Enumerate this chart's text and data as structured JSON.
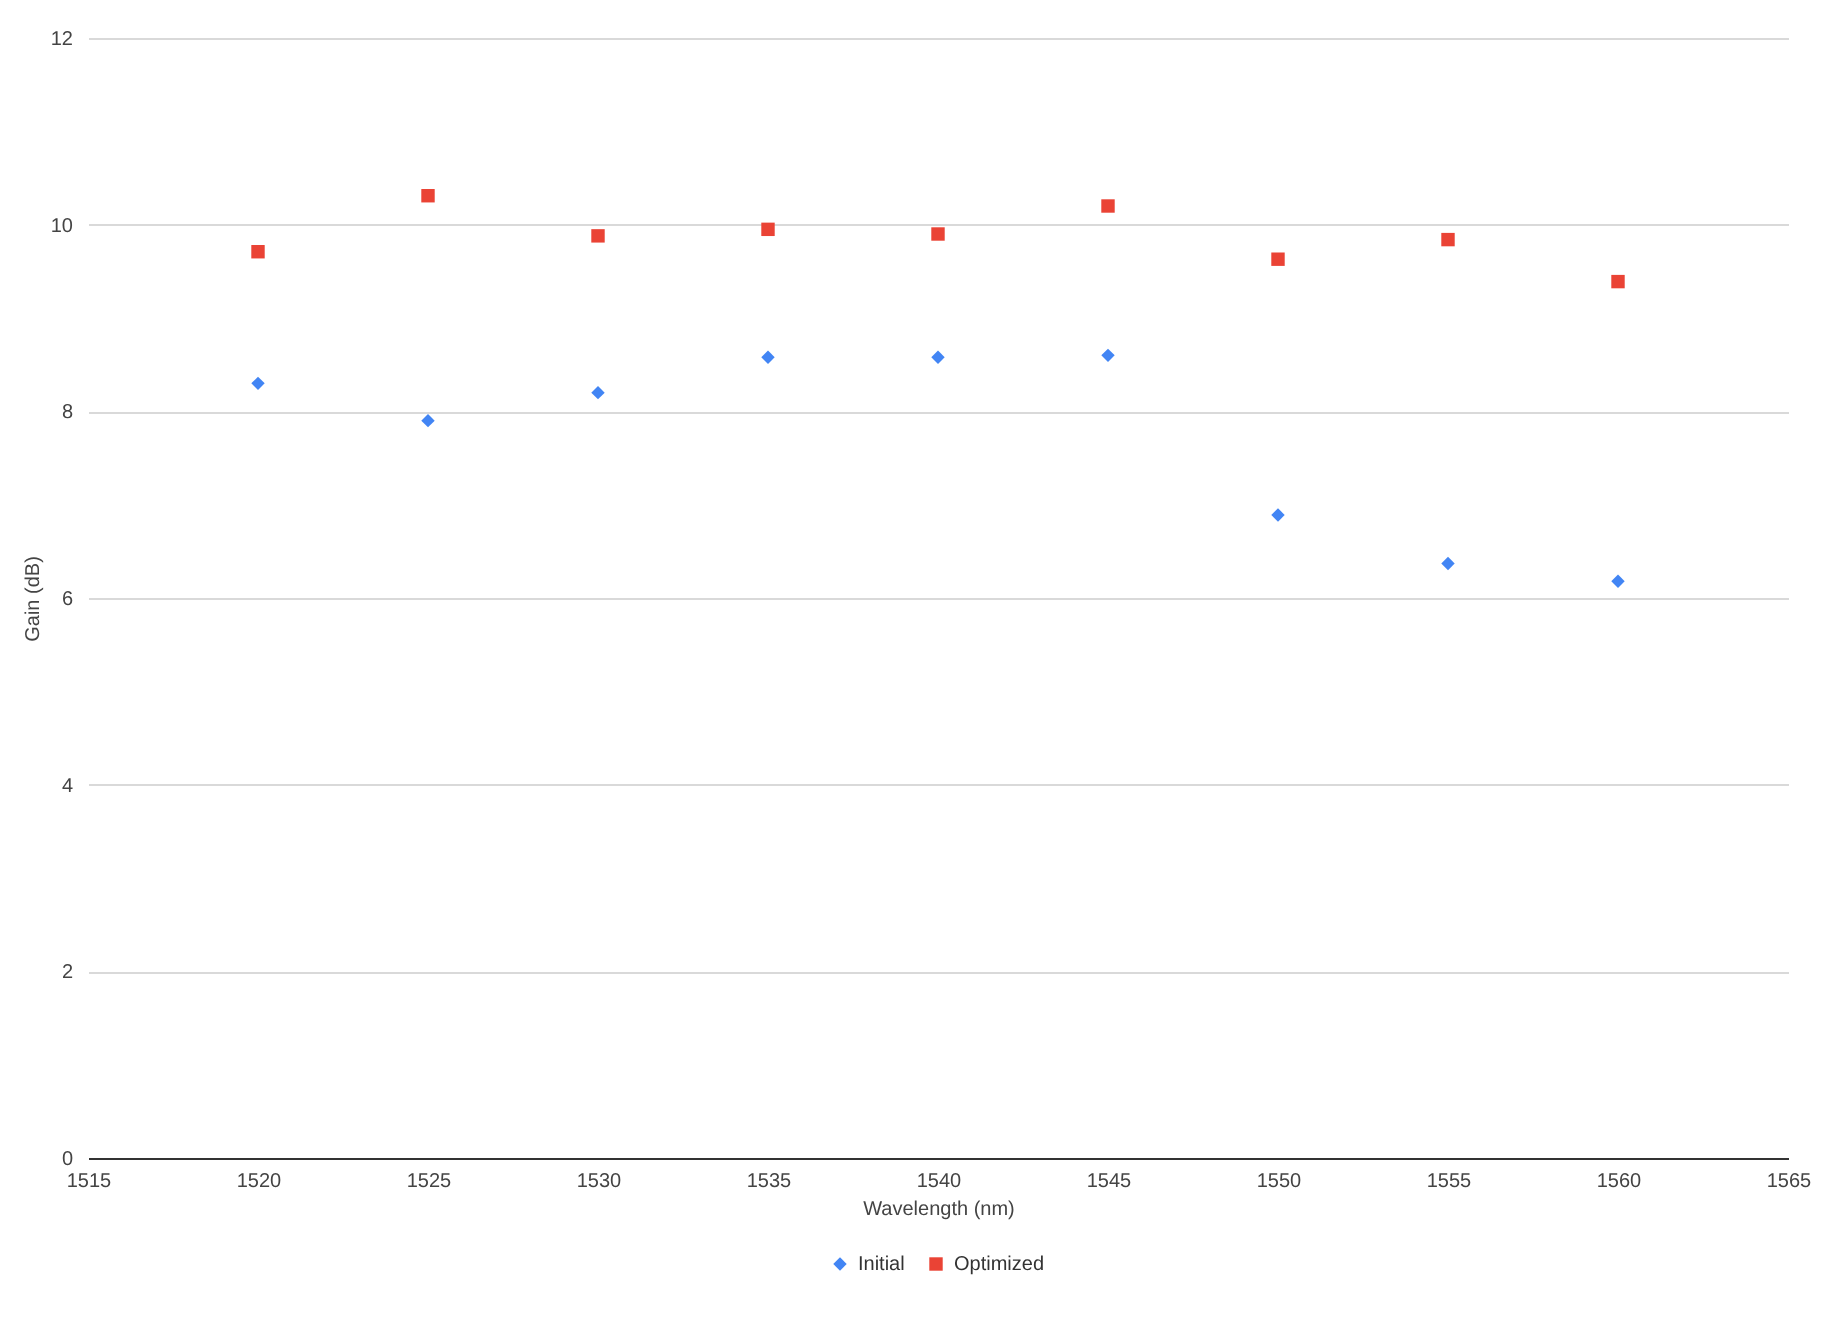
{
  "chart_data": {
    "type": "scatter",
    "xlabel": "Wavelength (nm)",
    "ylabel": "Gain (dB)",
    "x": [
      1520,
      1525,
      1530,
      1535,
      1540,
      1545,
      1550,
      1555,
      1560
    ],
    "series": [
      {
        "name": "Initial",
        "color": "#4285f4",
        "marker": "diamond",
        "values": [
          8.3,
          7.9,
          8.2,
          8.58,
          8.58,
          8.6,
          6.89,
          6.37,
          6.18
        ]
      },
      {
        "name": "Optimized",
        "color": "#ea4335",
        "marker": "square",
        "values": [
          9.71,
          10.31,
          9.88,
          9.95,
          9.9,
          10.2,
          9.63,
          9.84,
          9.39
        ]
      }
    ],
    "xlim": [
      1515,
      1565
    ],
    "xticks": [
      1515,
      1520,
      1525,
      1530,
      1535,
      1540,
      1545,
      1550,
      1555,
      1560,
      1565
    ],
    "ylim": [
      0,
      12
    ],
    "yticks": [
      0,
      2,
      4,
      6,
      8,
      10,
      12
    ],
    "grid": "y",
    "legend": "bottom"
  }
}
